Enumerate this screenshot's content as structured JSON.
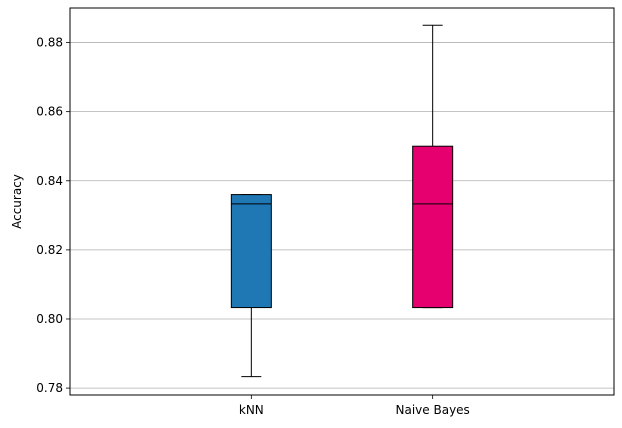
{
  "chart_data": {
    "type": "box",
    "title": "",
    "xlabel": "",
    "ylabel": "Accuracy",
    "ylim": [
      0.778,
      0.89
    ],
    "yticks": [
      0.78,
      0.8,
      0.82,
      0.84,
      0.86,
      0.88
    ],
    "ytick_labels": [
      "0.78",
      "0.80",
      "0.82",
      "0.84",
      "0.86",
      "0.88"
    ],
    "grid": "horizontal",
    "categories": [
      "kNN",
      "Naive Bayes"
    ],
    "boxes": [
      {
        "name": "kNN",
        "whisker_low": 0.7833,
        "q1": 0.8033,
        "median": 0.8333,
        "q3": 0.836,
        "whisker_high": 0.836,
        "color": "#1f77b4"
      },
      {
        "name": "Naive Bayes",
        "whisker_low": 0.8033,
        "q1": 0.8033,
        "median": 0.8333,
        "q3": 0.85,
        "whisker_high": 0.885,
        "color": "#e6006f"
      }
    ]
  }
}
